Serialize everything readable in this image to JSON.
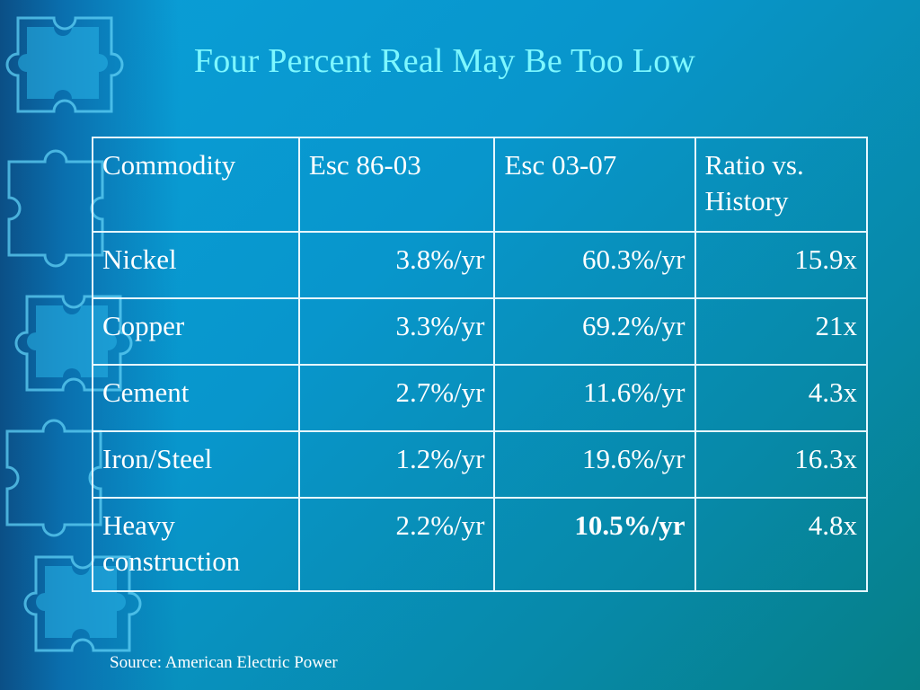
{
  "title": "Four Percent Real May Be Too Low",
  "table": {
    "headers": [
      "Commodity",
      "Esc 86-03",
      "Esc 03-07",
      "Ratio vs. History"
    ],
    "rows": [
      {
        "commodity": "Nickel",
        "esc_86_03": "3.8%/yr",
        "esc_03_07": "60.3%/yr",
        "ratio": "15.9x"
      },
      {
        "commodity": "Copper",
        "esc_86_03": "3.3%/yr",
        "esc_03_07": "69.2%/yr",
        "ratio": "21x"
      },
      {
        "commodity": "Cement",
        "esc_86_03": "2.7%/yr",
        "esc_03_07": "11.6%/yr",
        "ratio": "4.3x"
      },
      {
        "commodity": "Iron/Steel",
        "esc_86_03": "1.2%/yr",
        "esc_03_07": "19.6%/yr",
        "ratio": "16.3x"
      },
      {
        "commodity": "Heavy construction",
        "esc_86_03": "2.2%/yr",
        "esc_03_07": "10.5%/yr",
        "ratio": "4.8x"
      }
    ]
  },
  "source": "Source:  American Electric Power",
  "colors": {
    "title": "#7df7ff",
    "text": "#ffffff",
    "background": "#0a9fd8"
  },
  "decoration": "puzzle-pieces"
}
